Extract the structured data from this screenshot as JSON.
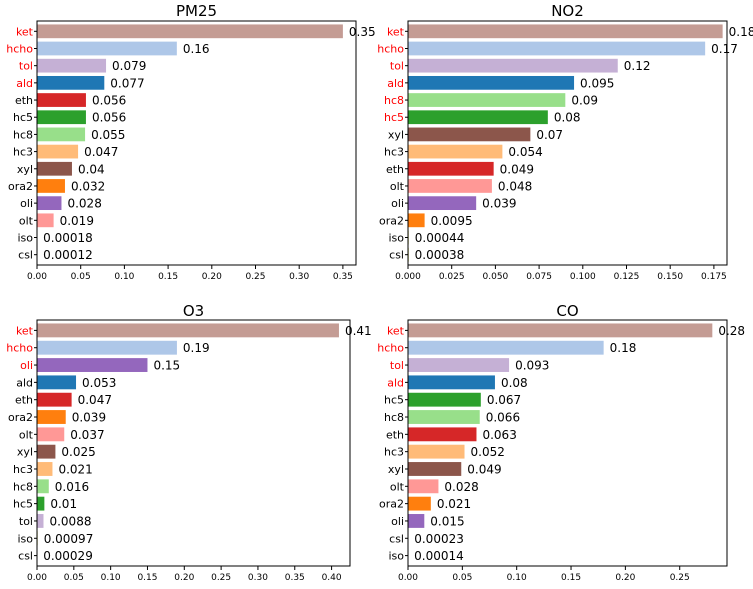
{
  "colors": {
    "ket": "#c49c94",
    "hcho": "#aec7e8",
    "tol": "#c5b0d5",
    "ald": "#1f77b4",
    "eth": "#d62728",
    "hc5": "#2ca02c",
    "hc8": "#98df8a",
    "hc3": "#ffbb78",
    "xyl": "#8c564b",
    "ora2": "#ff7f0e",
    "oli": "#9467bd",
    "olt": "#ff9896",
    "iso": "#dbdb8d",
    "csl": "#bcbd22",
    "highlight_label": "#ff0000",
    "normal_label": "#000000"
  },
  "chart_data": [
    {
      "type": "bar",
      "orientation": "horizontal",
      "title": "PM25",
      "categories": [
        "ket",
        "hcho",
        "tol",
        "ald",
        "eth",
        "hc5",
        "hc8",
        "hc3",
        "xyl",
        "ora2",
        "oli",
        "olt",
        "iso",
        "csl"
      ],
      "values": [
        0.35,
        0.16,
        0.079,
        0.077,
        0.056,
        0.056,
        0.055,
        0.047,
        0.04,
        0.032,
        0.028,
        0.019,
        0.00018,
        0.00012
      ],
      "value_labels": [
        "0.35",
        "0.16",
        "0.079",
        "0.077",
        "0.056",
        "0.056",
        "0.055",
        "0.047",
        "0.04",
        "0.032",
        "0.028",
        "0.019",
        "0.00018",
        "0.00012"
      ],
      "bar_colors": [
        "ket",
        "hcho",
        "tol",
        "ald",
        "eth",
        "hc5",
        "hc8",
        "hc3",
        "xyl",
        "ora2",
        "oli",
        "olt",
        "iso",
        "csl"
      ],
      "highlighted": [
        "ket",
        "hcho",
        "tol",
        "ald"
      ],
      "xlim": [
        0,
        0.365
      ],
      "xticks": [
        0.0,
        0.05,
        0.1,
        0.15,
        0.2,
        0.25,
        0.3,
        0.35
      ],
      "xtick_labels": [
        "0.00",
        "0.05",
        "0.10",
        "0.15",
        "0.20",
        "0.25",
        "0.30",
        "0.35"
      ]
    },
    {
      "type": "bar",
      "orientation": "horizontal",
      "title": "NO2",
      "categories": [
        "ket",
        "hcho",
        "tol",
        "ald",
        "hc8",
        "hc5",
        "xyl",
        "hc3",
        "eth",
        "olt",
        "oli",
        "ora2",
        "iso",
        "csl"
      ],
      "values": [
        0.18,
        0.17,
        0.12,
        0.095,
        0.09,
        0.08,
        0.07,
        0.054,
        0.049,
        0.048,
        0.039,
        0.0095,
        0.00044,
        0.00038
      ],
      "value_labels": [
        "0.18",
        "0.17",
        "0.12",
        "0.095",
        "0.09",
        "0.08",
        "0.07",
        "0.054",
        "0.049",
        "0.048",
        "0.039",
        "0.0095",
        "0.00044",
        "0.00038"
      ],
      "bar_colors": [
        "ket",
        "hcho",
        "tol",
        "ald",
        "hc8",
        "hc5",
        "xyl",
        "hc3",
        "eth",
        "olt",
        "oli",
        "ora2",
        "iso",
        "csl"
      ],
      "highlighted": [
        "ket",
        "hcho",
        "tol",
        "ald",
        "hc8",
        "hc5"
      ],
      "xlim": [
        0,
        0.1825
      ],
      "xticks": [
        0.0,
        0.025,
        0.05,
        0.075,
        0.1,
        0.125,
        0.15,
        0.175
      ],
      "xtick_labels": [
        "0.000",
        "0.025",
        "0.050",
        "0.075",
        "0.100",
        "0.125",
        "0.150",
        "0.175"
      ]
    },
    {
      "type": "bar",
      "orientation": "horizontal",
      "title": "O3",
      "categories": [
        "ket",
        "hcho",
        "oli",
        "ald",
        "eth",
        "ora2",
        "olt",
        "xyl",
        "hc3",
        "hc8",
        "hc5",
        "tol",
        "iso",
        "csl"
      ],
      "values": [
        0.41,
        0.19,
        0.15,
        0.053,
        0.047,
        0.039,
        0.037,
        0.025,
        0.021,
        0.016,
        0.01,
        0.0088,
        0.00097,
        0.00029
      ],
      "value_labels": [
        "0.41",
        "0.19",
        "0.15",
        "0.053",
        "0.047",
        "0.039",
        "0.037",
        "0.025",
        "0.021",
        "0.016",
        "0.01",
        "0.0088",
        "0.00097",
        "0.00029"
      ],
      "bar_colors": [
        "ket",
        "hcho",
        "oli",
        "ald",
        "eth",
        "ora2",
        "olt",
        "xyl",
        "hc3",
        "hc8",
        "hc5",
        "tol",
        "iso",
        "csl"
      ],
      "highlighted": [
        "ket",
        "hcho",
        "oli"
      ],
      "xlim": [
        0,
        0.425
      ],
      "xticks": [
        0.0,
        0.05,
        0.1,
        0.15,
        0.2,
        0.25,
        0.3,
        0.35,
        0.4
      ],
      "xtick_labels": [
        "0.00",
        "0.05",
        "0.10",
        "0.15",
        "0.20",
        "0.25",
        "0.30",
        "0.35",
        "0.40"
      ]
    },
    {
      "type": "bar",
      "orientation": "horizontal",
      "title": "CO",
      "categories": [
        "ket",
        "hcho",
        "tol",
        "ald",
        "hc5",
        "hc8",
        "eth",
        "hc3",
        "xyl",
        "olt",
        "ora2",
        "oli",
        "csl",
        "iso"
      ],
      "values": [
        0.28,
        0.18,
        0.093,
        0.08,
        0.067,
        0.066,
        0.063,
        0.052,
        0.049,
        0.028,
        0.021,
        0.015,
        0.00023,
        0.00014
      ],
      "value_labels": [
        "0.28",
        "0.18",
        "0.093",
        "0.08",
        "0.067",
        "0.066",
        "0.063",
        "0.052",
        "0.049",
        "0.028",
        "0.021",
        "0.015",
        "0.00023",
        "0.00014"
      ],
      "bar_colors": [
        "ket",
        "hcho",
        "tol",
        "ald",
        "hc5",
        "hc8",
        "eth",
        "hc3",
        "xyl",
        "olt",
        "ora2",
        "oli",
        "csl",
        "iso"
      ],
      "highlighted": [
        "ket",
        "hcho",
        "tol",
        "ald"
      ],
      "xlim": [
        0,
        0.2935
      ],
      "xticks": [
        0.0,
        0.05,
        0.1,
        0.15,
        0.2,
        0.25
      ],
      "xtick_labels": [
        "0.00",
        "0.05",
        "0.10",
        "0.15",
        "0.20",
        "0.25"
      ]
    }
  ]
}
